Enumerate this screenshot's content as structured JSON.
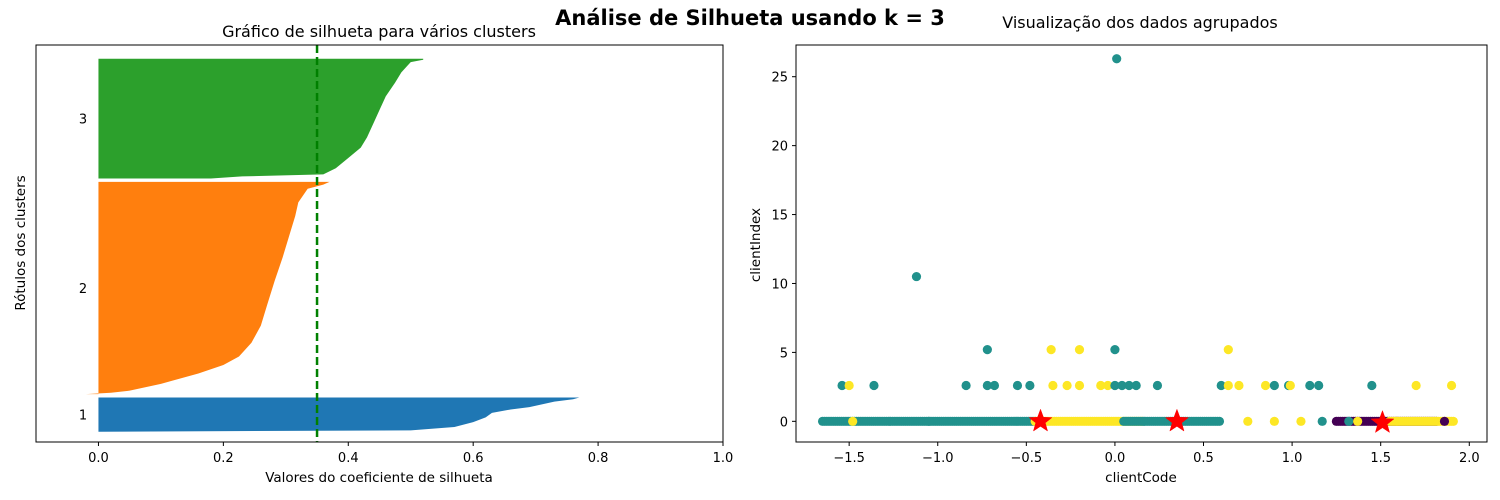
{
  "suptitle": "Análise de Silhueta usando k = 3",
  "chart_data": [
    {
      "type": "area",
      "title": "Gráfico de silhueta para vários clusters",
      "xlabel": "Valores do coeficiente de silhueta",
      "ylabel": "Rótulos dos clusters",
      "xlim": [
        -0.1,
        1.0
      ],
      "xticks": [
        "0.0",
        "0.2",
        "0.4",
        "0.6",
        "0.8",
        "1.0"
      ],
      "xtick_values": [
        0.0,
        0.2,
        0.4,
        0.6,
        0.8,
        1.0
      ],
      "cluster_labels": [
        "1",
        "2",
        "3"
      ],
      "average_silhouette": 0.35,
      "average_line_color": "#008000",
      "grid": false,
      "clusters": [
        {
          "label": "1",
          "color": "#1f77b4",
          "start": 0,
          "size": 100,
          "profile": [
            [
              0,
              0.0
            ],
            [
              4,
              0.5
            ],
            [
              14,
              0.57
            ],
            [
              28,
              0.6
            ],
            [
              42,
              0.62
            ],
            [
              55,
              0.63
            ],
            [
              65,
              0.66
            ],
            [
              72,
              0.69
            ],
            [
              80,
              0.71
            ],
            [
              88,
              0.73
            ],
            [
              95,
              0.76
            ],
            [
              100,
              0.77
            ]
          ]
        },
        {
          "label": "2",
          "color": "#ff7f0e",
          "start": 110,
          "size": 620,
          "profile": [
            [
              0,
              -0.02
            ],
            [
              4,
              0.02
            ],
            [
              10,
              0.05
            ],
            [
              30,
              0.1
            ],
            [
              60,
              0.16
            ],
            [
              85,
              0.2
            ],
            [
              110,
              0.225
            ],
            [
              150,
              0.245
            ],
            [
              200,
              0.26
            ],
            [
              260,
              0.27
            ],
            [
              330,
              0.282
            ],
            [
              400,
              0.295
            ],
            [
              460,
              0.305
            ],
            [
              520,
              0.315
            ],
            [
              560,
              0.32
            ],
            [
              600,
              0.335
            ],
            [
              612,
              0.36
            ],
            [
              620,
              0.37
            ]
          ]
        },
        {
          "label": "3",
          "color": "#2ca02c",
          "start": 740,
          "size": 350,
          "profile": [
            [
              0,
              0.18
            ],
            [
              6,
              0.23
            ],
            [
              12,
              0.36
            ],
            [
              30,
              0.38
            ],
            [
              60,
              0.4
            ],
            [
              90,
              0.42
            ],
            [
              120,
              0.43
            ],
            [
              160,
              0.44
            ],
            [
              200,
              0.45
            ],
            [
              240,
              0.46
            ],
            [
              280,
              0.475
            ],
            [
              310,
              0.485
            ],
            [
              330,
              0.495
            ],
            [
              340,
              0.5
            ],
            [
              347,
              0.52
            ],
            [
              350,
              0.52
            ]
          ]
        }
      ]
    },
    {
      "type": "scatter",
      "title": "Visualização dos dados agrupados",
      "xlabel": "clientCode",
      "ylabel": "clientIndex",
      "xlim": [
        -1.8,
        2.1
      ],
      "ylim": [
        -1.5,
        27.3
      ],
      "xticks": [
        "−1.5",
        "−1.0",
        "−0.5",
        "0.0",
        "0.5",
        "1.0",
        "1.5",
        "2.0"
      ],
      "xtick_values": [
        -1.5,
        -1.0,
        -0.5,
        0.0,
        0.5,
        1.0,
        1.5,
        2.0
      ],
      "yticks": [
        "0",
        "5",
        "10",
        "15",
        "20",
        "25"
      ],
      "ytick_values": [
        0,
        5,
        10,
        15,
        20,
        25
      ],
      "grid": false,
      "colors": {
        "purple": "#440154",
        "teal": "#21918c",
        "yellow": "#fde725",
        "centroid": "#ff0000"
      },
      "bands": [
        {
          "color": "teal",
          "x0": -1.65,
          "x1": -0.45,
          "y": 0
        },
        {
          "color": "yellow",
          "x0": -0.45,
          "x1": 0.15,
          "y": 0
        },
        {
          "color": "teal",
          "x0": 0.05,
          "x1": 0.6,
          "y": 0
        },
        {
          "color": "purple",
          "x0": 1.25,
          "x1": 1.82,
          "y": 0
        },
        {
          "color": "yellow",
          "x0": 1.55,
          "x1": 1.92,
          "y": 0
        }
      ],
      "points": [
        {
          "x": 0.01,
          "y": 26.3,
          "c": "teal"
        },
        {
          "x": -1.12,
          "y": 10.5,
          "c": "teal"
        },
        {
          "x": -0.72,
          "y": 5.2,
          "c": "teal"
        },
        {
          "x": -0.36,
          "y": 5.2,
          "c": "yellow"
        },
        {
          "x": -0.2,
          "y": 5.2,
          "c": "yellow"
        },
        {
          "x": 0.0,
          "y": 5.2,
          "c": "teal"
        },
        {
          "x": 0.64,
          "y": 5.2,
          "c": "yellow"
        },
        {
          "x": -1.54,
          "y": 2.6,
          "c": "teal"
        },
        {
          "x": -1.5,
          "y": 2.6,
          "c": "yellow"
        },
        {
          "x": -1.36,
          "y": 2.6,
          "c": "teal"
        },
        {
          "x": -0.84,
          "y": 2.6,
          "c": "teal"
        },
        {
          "x": -0.72,
          "y": 2.6,
          "c": "teal"
        },
        {
          "x": -0.68,
          "y": 2.6,
          "c": "teal"
        },
        {
          "x": -0.55,
          "y": 2.6,
          "c": "teal"
        },
        {
          "x": -0.48,
          "y": 2.6,
          "c": "teal"
        },
        {
          "x": -0.35,
          "y": 2.6,
          "c": "yellow"
        },
        {
          "x": -0.27,
          "y": 2.6,
          "c": "yellow"
        },
        {
          "x": -0.2,
          "y": 2.6,
          "c": "yellow"
        },
        {
          "x": -0.08,
          "y": 2.6,
          "c": "yellow"
        },
        {
          "x": -0.04,
          "y": 2.6,
          "c": "yellow"
        },
        {
          "x": 0.0,
          "y": 2.6,
          "c": "teal"
        },
        {
          "x": 0.04,
          "y": 2.6,
          "c": "teal"
        },
        {
          "x": 0.08,
          "y": 2.6,
          "c": "teal"
        },
        {
          "x": 0.12,
          "y": 2.6,
          "c": "teal"
        },
        {
          "x": 0.24,
          "y": 2.6,
          "c": "teal"
        },
        {
          "x": 0.6,
          "y": 2.6,
          "c": "teal"
        },
        {
          "x": 0.64,
          "y": 2.6,
          "c": "yellow"
        },
        {
          "x": 0.7,
          "y": 2.6,
          "c": "yellow"
        },
        {
          "x": 0.85,
          "y": 2.6,
          "c": "yellow"
        },
        {
          "x": 0.9,
          "y": 2.6,
          "c": "teal"
        },
        {
          "x": 0.98,
          "y": 2.6,
          "c": "teal"
        },
        {
          "x": 0.99,
          "y": 2.6,
          "c": "yellow"
        },
        {
          "x": 1.1,
          "y": 2.6,
          "c": "teal"
        },
        {
          "x": 1.15,
          "y": 2.6,
          "c": "teal"
        },
        {
          "x": 1.45,
          "y": 2.6,
          "c": "teal"
        },
        {
          "x": 1.7,
          "y": 2.6,
          "c": "yellow"
        },
        {
          "x": 1.9,
          "y": 2.6,
          "c": "yellow"
        },
        {
          "x": 0.75,
          "y": 0,
          "c": "yellow"
        },
        {
          "x": 0.9,
          "y": 0,
          "c": "yellow"
        },
        {
          "x": 1.05,
          "y": 0,
          "c": "yellow"
        },
        {
          "x": 1.17,
          "y": 0,
          "c": "teal"
        },
        {
          "x": 1.32,
          "y": 0,
          "c": "teal"
        },
        {
          "x": 1.37,
          "y": 0,
          "c": "yellow"
        },
        {
          "x": -1.48,
          "y": 0,
          "c": "yellow"
        },
        {
          "x": -1.05,
          "y": 0,
          "c": "teal"
        },
        {
          "x": 1.86,
          "y": 0,
          "c": "purple"
        }
      ],
      "centroids": [
        {
          "x": -0.42,
          "y": 0
        },
        {
          "x": 0.35,
          "y": 0
        },
        {
          "x": 1.51,
          "y": -0.1
        }
      ]
    }
  ]
}
